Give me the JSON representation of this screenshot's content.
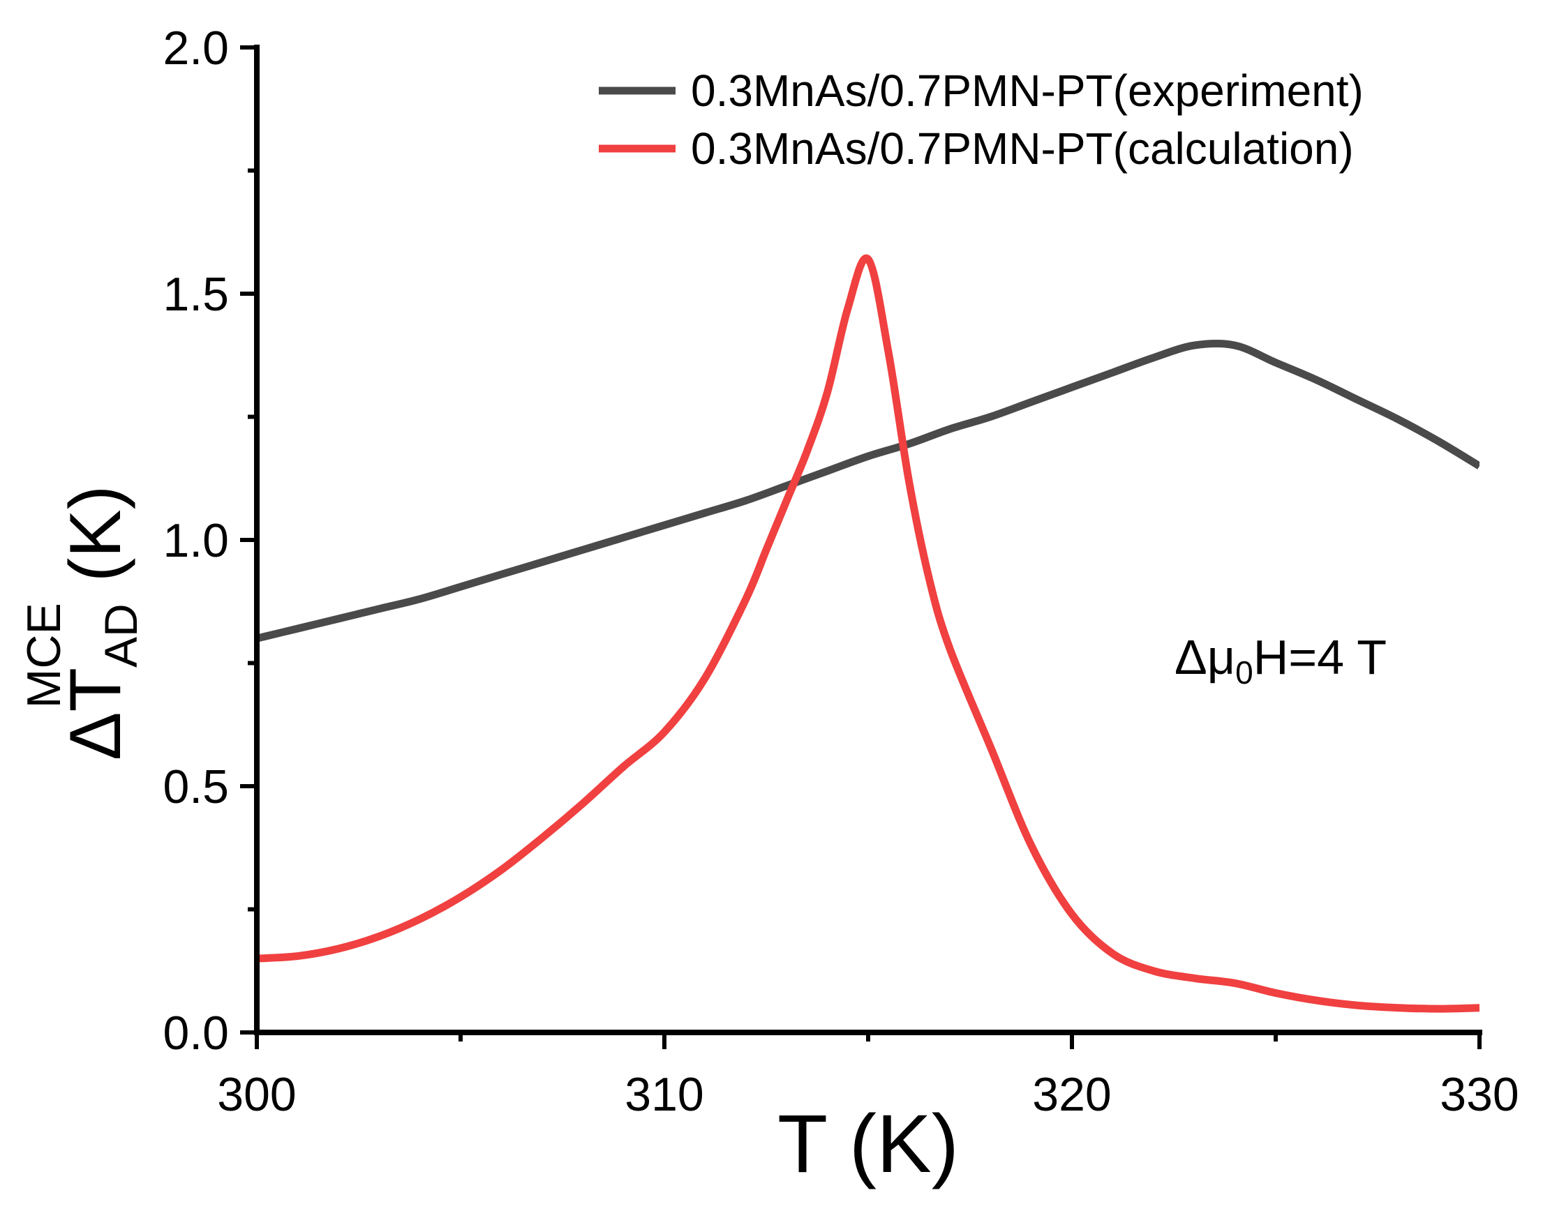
{
  "chart_data": {
    "type": "line",
    "title": "",
    "xlabel": "T (K)",
    "ylabel": {
      "symbol": "ΔT",
      "subscript": "AD",
      "superscript": "MCE",
      "unit": "(K)"
    },
    "xlim": [
      300,
      330
    ],
    "ylim": [
      0.0,
      2.0
    ],
    "xticks": [
      300,
      310,
      320,
      330
    ],
    "xtick_labels": [
      "300",
      "310",
      "320",
      "330"
    ],
    "yticks": [
      0.0,
      0.5,
      1.0,
      1.5,
      2.0
    ],
    "ytick_labels": [
      "0.0",
      "0.5",
      "1.0",
      "1.5",
      "2.0"
    ],
    "grid": false,
    "legend_position": "top-right",
    "annotation": {
      "prefix": "Δμ",
      "subscript": "0",
      "suffix": "H=4 T"
    },
    "series": [
      {
        "name": "0.3MnAs/0.7PMN-PT(experiment)",
        "color": "#4a4a4a",
        "x": [
          300,
          301,
          302,
          303,
          304,
          305,
          306,
          307,
          308,
          309,
          310,
          311,
          312,
          313,
          314,
          315,
          316,
          317,
          318,
          319,
          320,
          321,
          322,
          323,
          324,
          325,
          326,
          327,
          328,
          329,
          330
        ],
        "y": [
          0.8,
          0.82,
          0.84,
          0.86,
          0.88,
          0.905,
          0.93,
          0.955,
          0.98,
          1.005,
          1.03,
          1.055,
          1.08,
          1.11,
          1.14,
          1.17,
          1.195,
          1.225,
          1.25,
          1.28,
          1.31,
          1.34,
          1.37,
          1.395,
          1.395,
          1.36,
          1.325,
          1.285,
          1.245,
          1.2,
          1.15
        ]
      },
      {
        "name": "0.3MnAs/0.7PMN-PT(calculation)",
        "color": "#f04040",
        "x": [
          300,
          301,
          302,
          303,
          304,
          305,
          306,
          307,
          308,
          309,
          310,
          311,
          312,
          312.5,
          313,
          313.5,
          314,
          314.5,
          315,
          315.5,
          316,
          316.5,
          317,
          318,
          319,
          320,
          321,
          322,
          323,
          324,
          325,
          326,
          327,
          328,
          329,
          330
        ],
        "y": [
          0.15,
          0.155,
          0.17,
          0.195,
          0.23,
          0.275,
          0.33,
          0.395,
          0.465,
          0.54,
          0.61,
          0.72,
          0.88,
          0.98,
          1.08,
          1.18,
          1.3,
          1.47,
          1.57,
          1.38,
          1.12,
          0.92,
          0.78,
          0.58,
          0.38,
          0.24,
          0.16,
          0.125,
          0.11,
          0.1,
          0.08,
          0.065,
          0.055,
          0.05,
          0.048,
          0.05
        ]
      }
    ]
  }
}
